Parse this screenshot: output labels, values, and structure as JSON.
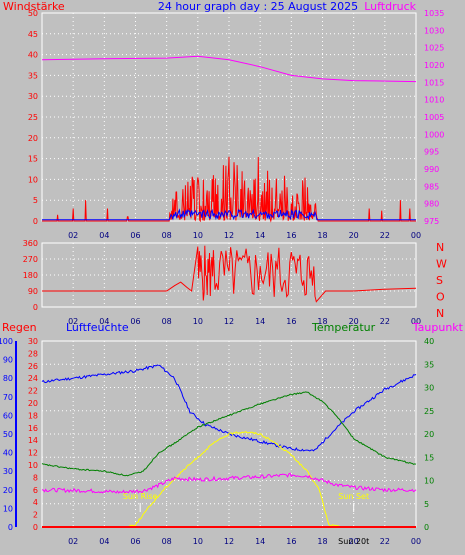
{
  "chart_data": [
    {
      "type": "line",
      "title": "24 hour graph day : 25 August 2025",
      "left_label": "Windstärke",
      "right_label": "Luftdruck",
      "x_ticks": [
        "02",
        "04",
        "06",
        "08",
        "10",
        "12",
        "14",
        "16",
        "18",
        "20",
        "22",
        "00"
      ],
      "x_range": [
        0,
        24
      ],
      "left_axis": {
        "range": [
          0,
          50
        ],
        "ticks": [
          "0",
          "5",
          "10",
          "15",
          "20",
          "25",
          "30",
          "35",
          "40",
          "45",
          "50"
        ]
      },
      "right_axis": {
        "range": [
          975,
          1035
        ],
        "ticks": [
          "975",
          "980",
          "985",
          "990",
          "995",
          "1000",
          "1005",
          "1010",
          "1015",
          "1020",
          "1025",
          "1030",
          "1035"
        ]
      },
      "series": [
        {
          "color": "#ff0000",
          "gust_peaks": [
            [
              1.0,
              1.5
            ],
            [
              2.0,
              3.0
            ],
            [
              2.8,
              5.0
            ],
            [
              4.2,
              3.0
            ],
            [
              5.5,
              1.0
            ],
            [
              8.3,
              4.0
            ],
            [
              8.7,
              9.0
            ],
            [
              9.2,
              12.0
            ],
            [
              9.8,
              14.0
            ],
            [
              10.4,
              11.0
            ],
            [
              11.0,
              13.0
            ],
            [
              11.6,
              15.0
            ],
            [
              12.0,
              18.0
            ],
            [
              12.4,
              16.0
            ],
            [
              12.8,
              14.0
            ],
            [
              13.4,
              15.0
            ],
            [
              13.9,
              17.0
            ],
            [
              14.5,
              13.0
            ],
            [
              15.0,
              12.0
            ],
            [
              15.6,
              14.0
            ],
            [
              16.2,
              11.0
            ],
            [
              16.8,
              12.0
            ],
            [
              17.2,
              9.0
            ],
            [
              17.6,
              6.0
            ],
            [
              21.0,
              3.0
            ],
            [
              21.8,
              2.5
            ],
            [
              23.0,
              5.0
            ],
            [
              23.6,
              3.0
            ]
          ]
        },
        {
          "color": "#0000ff",
          "activity": [
            8.2,
            17.6
          ]
        },
        {
          "color": "#ff00ff",
          "values": [
            [
              0,
              1021.5
            ],
            [
              4,
              1021.8
            ],
            [
              8,
              1022.0
            ],
            [
              10,
              1022.5
            ],
            [
              12,
              1021.5
            ],
            [
              14,
              1019.5
            ],
            [
              16,
              1017.0
            ],
            [
              18,
              1016.0
            ],
            [
              20,
              1015.5
            ],
            [
              24,
              1015.2
            ]
          ]
        }
      ]
    },
    {
      "type": "line",
      "x_ticks": [
        "02",
        "04",
        "06",
        "08",
        "10",
        "12",
        "14",
        "16",
        "18",
        "20",
        "22",
        "00"
      ],
      "x_range": [
        0,
        24
      ],
      "y_ticks": [
        "0",
        "90",
        "180",
        "270",
        "360"
      ],
      "y_range": [
        0,
        360
      ],
      "right_labels": [
        "N",
        "W",
        "S",
        "O",
        "N"
      ],
      "series": [
        {
          "color": "#ff0000",
          "values": [
            [
              0,
              90
            ],
            [
              8,
              90
            ],
            [
              8.5,
              120
            ],
            [
              8.9,
              140
            ],
            [
              9.3,
              110
            ],
            [
              9.6,
              90
            ],
            [
              10.0,
              340
            ],
            [
              10.5,
              180
            ],
            [
              11.0,
              320
            ],
            [
              12.0,
              200
            ],
            [
              13.0,
              280
            ],
            [
              14.0,
              230
            ],
            [
              15.0,
              260
            ],
            [
              16.0,
              310
            ],
            [
              16.8,
              150
            ],
            [
              17.6,
              30
            ],
            [
              18.2,
              90
            ],
            [
              20,
              90
            ],
            [
              22,
              100
            ],
            [
              24,
              105
            ]
          ]
        }
      ]
    },
    {
      "type": "line",
      "labels": [
        "Regen",
        "Luftfeuchte",
        "Temperatur",
        "Taupunkt"
      ],
      "x_ticks": [
        "02",
        "04",
        "06",
        "08",
        "10",
        "12",
        "14",
        "16",
        "18",
        "20",
        "22",
        "00"
      ],
      "x_range": [
        0,
        24
      ],
      "axis_regen": {
        "range": [
          0,
          30
        ],
        "ticks": [
          "0",
          "2",
          "4",
          "6",
          "8",
          "10",
          "12",
          "14",
          "16",
          "18",
          "20",
          "22",
          "24",
          "26",
          "28",
          "30"
        ]
      },
      "axis_humidity": {
        "range": [
          0,
          100
        ],
        "ticks": [
          "0",
          "10",
          "20",
          "30",
          "40",
          "50",
          "60",
          "70",
          "80",
          "90",
          "100"
        ]
      },
      "axis_temp": {
        "range": [
          0,
          40
        ],
        "ticks": [
          "0",
          "5",
          "10",
          "15",
          "20",
          "25",
          "30",
          "35",
          "40"
        ]
      },
      "annotations": [
        {
          "text": "Sun Rise",
          "x": 6.3,
          "color": "#ffff00"
        },
        {
          "text": "Sun Set",
          "x": 20.0,
          "color": "#ffff00"
        },
        {
          "text": "Sun 20t",
          "x": 20.0,
          "color": "#000000"
        }
      ],
      "series": [
        {
          "color": "#0000ff",
          "axis": "humidity",
          "values": [
            [
              0,
              78
            ],
            [
              2,
              80
            ],
            [
              4,
              82
            ],
            [
              6,
              84
            ],
            [
              7.5,
              87
            ],
            [
              8.5,
              80
            ],
            [
              9.5,
              62
            ],
            [
              10.5,
              55
            ],
            [
              12,
              50
            ],
            [
              14,
              46
            ],
            [
              16,
              42
            ],
            [
              17.5,
              41
            ],
            [
              18.5,
              50
            ],
            [
              20,
              62
            ],
            [
              22,
              74
            ],
            [
              24,
              82
            ]
          ]
        },
        {
          "color": "#008000",
          "axis": "temp",
          "values": [
            [
              0,
              13.5
            ],
            [
              2,
              12.5
            ],
            [
              4,
              12.0
            ],
            [
              5.5,
              11.0
            ],
            [
              6.5,
              12.0
            ],
            [
              7.5,
              16.0
            ],
            [
              8.5,
              18.0
            ],
            [
              10,
              21.5
            ],
            [
              12,
              24.0
            ],
            [
              14,
              26.5
            ],
            [
              16,
              28.5
            ],
            [
              17,
              29.0
            ],
            [
              18,
              27.0
            ],
            [
              19,
              23.5
            ],
            [
              20,
              19.0
            ],
            [
              22,
              15.0
            ],
            [
              24,
              13.5
            ]
          ]
        },
        {
          "color": "#ffff00",
          "axis": "temp",
          "values": [
            [
              5.3,
              0
            ],
            [
              6.0,
              0.5
            ],
            [
              6.8,
              4.0
            ],
            [
              7.8,
              8.0
            ],
            [
              9.0,
              12.0
            ],
            [
              10.0,
              15.0
            ],
            [
              11.0,
              18.0
            ],
            [
              12.0,
              20.0
            ],
            [
              13.0,
              20.5
            ],
            [
              14.0,
              20.0
            ],
            [
              15.0,
              18.0
            ],
            [
              16.0,
              15.5
            ],
            [
              17.0,
              12.0
            ],
            [
              17.8,
              8.0
            ],
            [
              18.4,
              0.5
            ],
            [
              19.2,
              0
            ]
          ]
        },
        {
          "color": "#ff00ff",
          "axis": "temp",
          "values": [
            [
              0,
              8.0
            ],
            [
              3,
              7.8
            ],
            [
              5,
              7.5
            ],
            [
              6.5,
              7.8
            ],
            [
              7.5,
              9.0
            ],
            [
              8.5,
              10.5
            ],
            [
              10,
              10.2
            ],
            [
              12,
              10.5
            ],
            [
              14,
              10.8
            ],
            [
              16,
              11.2
            ],
            [
              17,
              11.0
            ],
            [
              18,
              10.0
            ],
            [
              19,
              9.0
            ],
            [
              20,
              8.5
            ],
            [
              22,
              8.0
            ],
            [
              24,
              8.0
            ]
          ]
        },
        {
          "color": "#ff0000",
          "axis": "regen",
          "values": [
            [
              0,
              0
            ],
            [
              24,
              0
            ]
          ]
        }
      ]
    }
  ]
}
